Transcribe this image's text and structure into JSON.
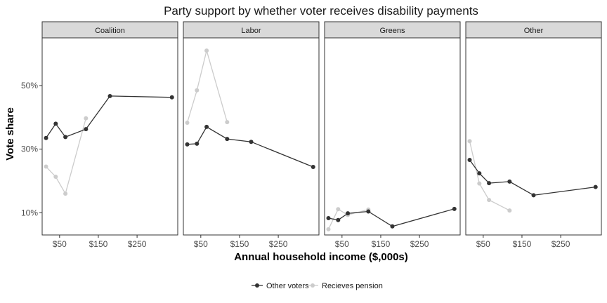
{
  "chart_data": {
    "type": "line",
    "title": "Party support by whether voter receives disability payments",
    "xlabel": "Annual household income ($,000s)",
    "ylabel": "Vote share",
    "xlim": [
      5,
      355
    ],
    "ylim": [
      0.03,
      0.65
    ],
    "x_ticks": [
      50,
      150,
      250
    ],
    "x_tick_labels": [
      "$50",
      "$150",
      "$250"
    ],
    "y_ticks": [
      0.1,
      0.3,
      0.5
    ],
    "y_tick_labels": [
      "10%",
      "30%",
      "50%"
    ],
    "grid": false,
    "legend_position": "bottom",
    "legend": [
      {
        "label": "Other voters",
        "color": "#333333"
      },
      {
        "label": "Recieves pension",
        "color": "#cccccc"
      }
    ],
    "panels": [
      {
        "name": "Coalition",
        "series": [
          {
            "name": "Other voters",
            "color": "#333333",
            "x": [
              15,
              40,
              65,
              118,
              180,
              340
            ],
            "y": [
              0.335,
              0.38,
              0.338,
              0.363,
              0.467,
              0.463
            ]
          },
          {
            "name": "Recieves pension",
            "color": "#cccccc",
            "x": [
              15,
              40,
              65,
              118
            ],
            "y": [
              0.245,
              0.213,
              0.16,
              0.397
            ]
          }
        ]
      },
      {
        "name": "Labor",
        "series": [
          {
            "name": "Other voters",
            "color": "#333333",
            "x": [
              15,
              40,
              65,
              118,
              180,
              340
            ],
            "y": [
              0.315,
              0.317,
              0.37,
              0.332,
              0.323,
              0.244
            ]
          },
          {
            "name": "Recieves pension",
            "color": "#cccccc",
            "x": [
              15,
              40,
              65,
              118
            ],
            "y": [
              0.383,
              0.485,
              0.61,
              0.385
            ]
          }
        ]
      },
      {
        "name": "Greens",
        "series": [
          {
            "name": "Other voters",
            "color": "#333333",
            "x": [
              15,
              40,
              65,
              118,
              180,
              340
            ],
            "y": [
              0.083,
              0.077,
              0.098,
              0.104,
              0.057,
              0.112
            ]
          },
          {
            "name": "Recieves pension",
            "color": "#cccccc",
            "x": [
              15,
              40,
              65,
              118
            ],
            "y": [
              0.048,
              0.111,
              0.093,
              0.11
            ]
          }
        ]
      },
      {
        "name": "Other",
        "series": [
          {
            "name": "Other voters",
            "color": "#333333",
            "x": [
              15,
              40,
              65,
              118,
              180,
              340
            ],
            "y": [
              0.266,
              0.224,
              0.193,
              0.198,
              0.155,
              0.181
            ]
          },
          {
            "name": "Recieves pension",
            "color": "#cccccc",
            "x": [
              15,
              40,
              65,
              118
            ],
            "y": [
              0.325,
              0.192,
              0.14,
              0.107
            ]
          }
        ]
      }
    ]
  }
}
